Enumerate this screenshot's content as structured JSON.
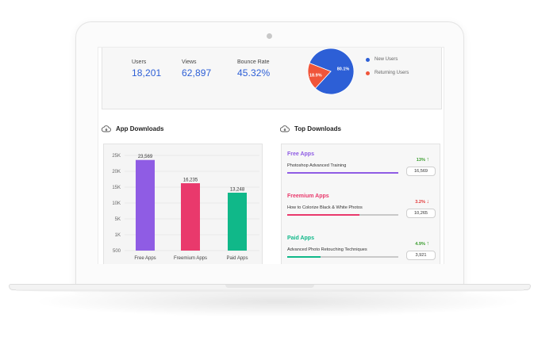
{
  "stats": {
    "users_label": "Users",
    "users_value": "18,201",
    "views_label": "Views",
    "views_value": "62,897",
    "bounce_label": "Bounce Rate",
    "bounce_value": "45.32%"
  },
  "pie": {
    "slices": [
      {
        "label": "80.1%",
        "value": 80.1,
        "color": "#2d5fd6"
      },
      {
        "label": "18.9%",
        "value": 18.9,
        "color": "#f0553a"
      }
    ],
    "legend": [
      {
        "label": "New Users",
        "color": "#2d5fd6"
      },
      {
        "label": "Returning Users",
        "color": "#f0553a"
      }
    ]
  },
  "sections": {
    "app_downloads": "App Downloads",
    "top_downloads": "Top Downloads"
  },
  "chart_data": {
    "type": "bar",
    "categories": [
      "Free Apps",
      "Freemium Apps",
      "Paid Apps"
    ],
    "values": [
      23569,
      16235,
      13248
    ],
    "value_labels": [
      "23,569",
      "16,235",
      "13,248"
    ],
    "colors": [
      "#8f5ce4",
      "#e9396c",
      "#10b889"
    ],
    "y_ticks": [
      "500",
      "1K",
      "5K",
      "10K",
      "15K",
      "20K",
      "25K"
    ],
    "y_tick_values": [
      500,
      1000,
      5000,
      10000,
      15000,
      20000,
      25000
    ],
    "ylim": [
      500,
      25000
    ],
    "grid": true
  },
  "top_downloads": [
    {
      "category": "Free Apps",
      "title": "Photoshop Advanced Training",
      "change": "13%",
      "direction": "up",
      "count": "16,569",
      "color": "#8f5ce4",
      "progress": 1.0
    },
    {
      "category": "Freemium Apps",
      "title": "How to Colorize Black & White Photos",
      "change": "3.2%",
      "direction": "down",
      "count": "10,265",
      "color": "#e9396c",
      "progress": 0.65
    },
    {
      "category": "Paid Apps",
      "title": "Advanced Photo Retouching Techniques",
      "change": "4.9%",
      "direction": "up",
      "count": "3,921",
      "color": "#10b889",
      "progress": 0.3
    }
  ],
  "colors": {
    "up": "#3a9d2e",
    "down": "#e33a3a"
  }
}
